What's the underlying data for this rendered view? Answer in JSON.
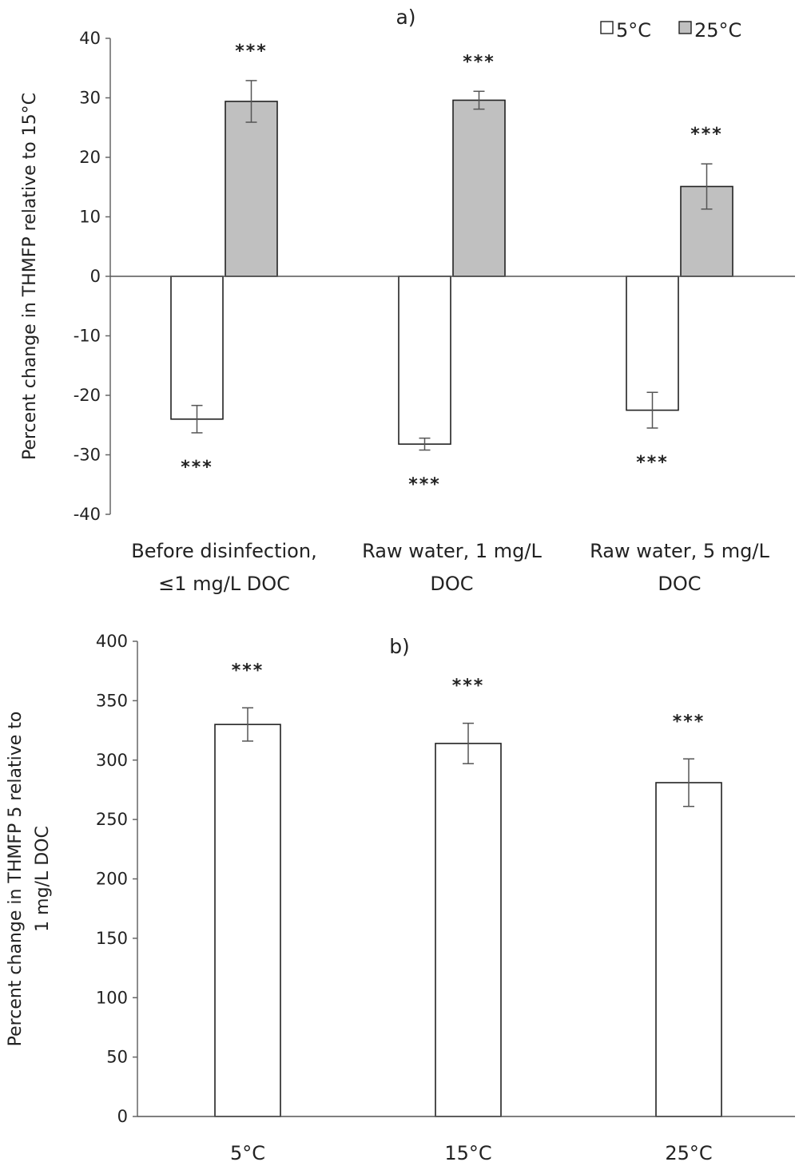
{
  "chart_data": [
    {
      "type": "bar",
      "panel_label": "a)",
      "ylabel": "Percent change in THMFP  relative to 15°C",
      "ylim": [
        -40,
        40
      ],
      "yticks": [
        40,
        30,
        20,
        10,
        0,
        -10,
        -20,
        -30,
        -40
      ],
      "categories": [
        [
          "Before disinfection,",
          "≤1 mg/L DOC"
        ],
        [
          "Raw water, 1 mg/L",
          "DOC"
        ],
        [
          "Raw water, 5 mg/L",
          "DOC"
        ]
      ],
      "series": [
        {
          "name": "5°C",
          "color": "#ffffff",
          "values": [
            -24,
            -28.2,
            -22.5
          ],
          "errors": [
            2.3,
            1.0,
            3.0
          ],
          "annotations": [
            "***",
            "***",
            "***"
          ]
        },
        {
          "name": "25°C",
          "color": "#c0c0c0",
          "values": [
            29.4,
            29.6,
            15.1
          ],
          "errors": [
            3.5,
            1.5,
            3.8
          ],
          "annotations": [
            "***",
            "***",
            "***"
          ]
        }
      ],
      "legend": "top-right",
      "grid": false
    },
    {
      "type": "bar",
      "panel_label": "b)",
      "ylabel": "Percent change in THMFP 5 relative to\n1 mg/L DOC",
      "ylim": [
        0,
        400
      ],
      "yticks": [
        400,
        350,
        300,
        250,
        200,
        150,
        100,
        50,
        0
      ],
      "categories": [
        [
          "5°C"
        ],
        [
          "15°C"
        ],
        [
          "25°C"
        ]
      ],
      "series": [
        {
          "color": "#ffffff",
          "values": [
            330,
            314,
            281
          ],
          "errors": [
            14,
            17,
            20
          ],
          "annotations": [
            "***",
            "***",
            "***"
          ]
        }
      ],
      "grid": false
    }
  ]
}
